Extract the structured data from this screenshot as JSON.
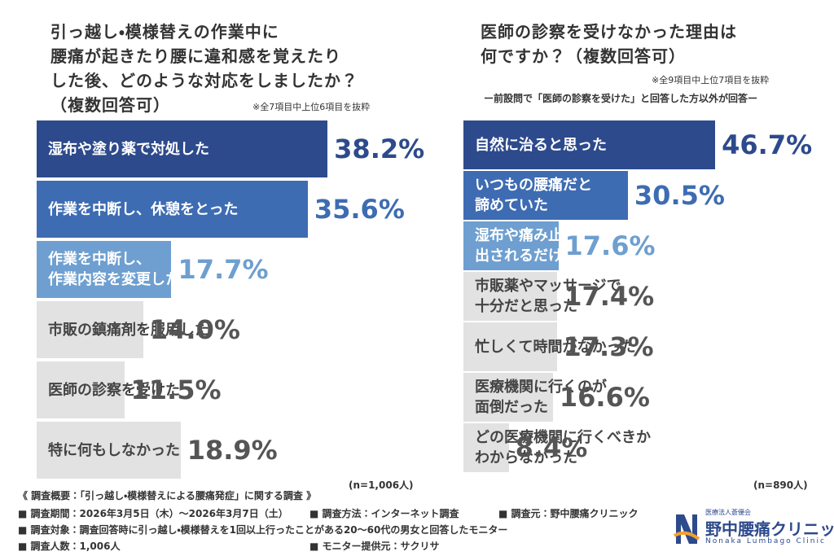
{
  "chart_data": [
    {
      "type": "bar",
      "title": "引っ越し・模様替えの作業中に\n腰痛が起きたり腰に違和感を覚えたり\nした後、どのような対応をしましたか？\n（複数回答可）",
      "note": "※全7項目中上位6項目を抜粋",
      "categories": [
        "湿布や塗り薬で対処した",
        "作業を中断し、休憩をとった",
        "作業を中断し、\n作業内容を変更した",
        "市販の鎮痛剤を服用した",
        "医師の診察を受けた",
        "特に何もしなかった"
      ],
      "values": [
        38.2,
        35.6,
        17.7,
        14.0,
        11.5,
        18.9
      ],
      "value_labels": [
        "38.2%",
        "35.6%",
        "17.7%",
        "14.0%",
        "11.5%",
        "18.9%"
      ],
      "colors": [
        "#2d4a8c",
        "#3e6cb2",
        "#6e9fd0",
        "#e2e2e2",
        "#e2e2e2",
        "#e2e2e2"
      ],
      "sample": "(n=1,006人)"
    },
    {
      "type": "bar",
      "title": "医師の診察を受けなかった理由は\n何ですか？（複数回答可）",
      "note": "※全9項目中上位7項目を抜粋",
      "subtitle": "ー前設問で「医師の診察を受けた」と回答した方以外が回答ー",
      "categories": [
        "自然に治ると思った",
        "いつもの腰痛だと\n諦めていた",
        "湿布や痛み止めを\n出されるだけだと思った",
        "市販薬やマッサージで\n十分だと思った",
        "忙しくて時間がなかった",
        "医療機関に行くのが\n面倒だった",
        "どの医療機関に行くべきか\nわからなかった"
      ],
      "values": [
        46.7,
        30.5,
        17.6,
        17.4,
        17.3,
        16.6,
        8.4
      ],
      "value_labels": [
        "46.7%",
        "30.5%",
        "17.6%",
        "17.4%",
        "17.3%",
        "16.6%",
        "8.4%"
      ],
      "colors": [
        "#2d4a8c",
        "#3e6cb2",
        "#6e9fd0",
        "#e2e2e2",
        "#e2e2e2",
        "#e2e2e2",
        "#e2e2e2"
      ],
      "sample": "(n=890人)"
    }
  ],
  "footer": {
    "heading": "《 調査概要：「引っ越し・模様替えによる腰痛発症」に関する調査 》",
    "rows": [
      [
        "■ 調査期間：2026年3月5日（木）〜2026年3月7日（土）",
        "■ 調査方法：インターネット調査",
        "■ 調査元：野中腰痛クリニック"
      ],
      [
        "■ 調査対象：調査回答時に引っ越し・模様替えを1回以上行ったことがある20〜60代の男女と回答したモニター"
      ],
      [
        "■ 調査人数：1,006人",
        "■ モニター提供元：サクリサ"
      ]
    ]
  },
  "logo": {
    "org": "医療法人蒼優会",
    "name": "野中腰痛クリニック",
    "roman": "Nonaka Lumbago Clinic"
  }
}
